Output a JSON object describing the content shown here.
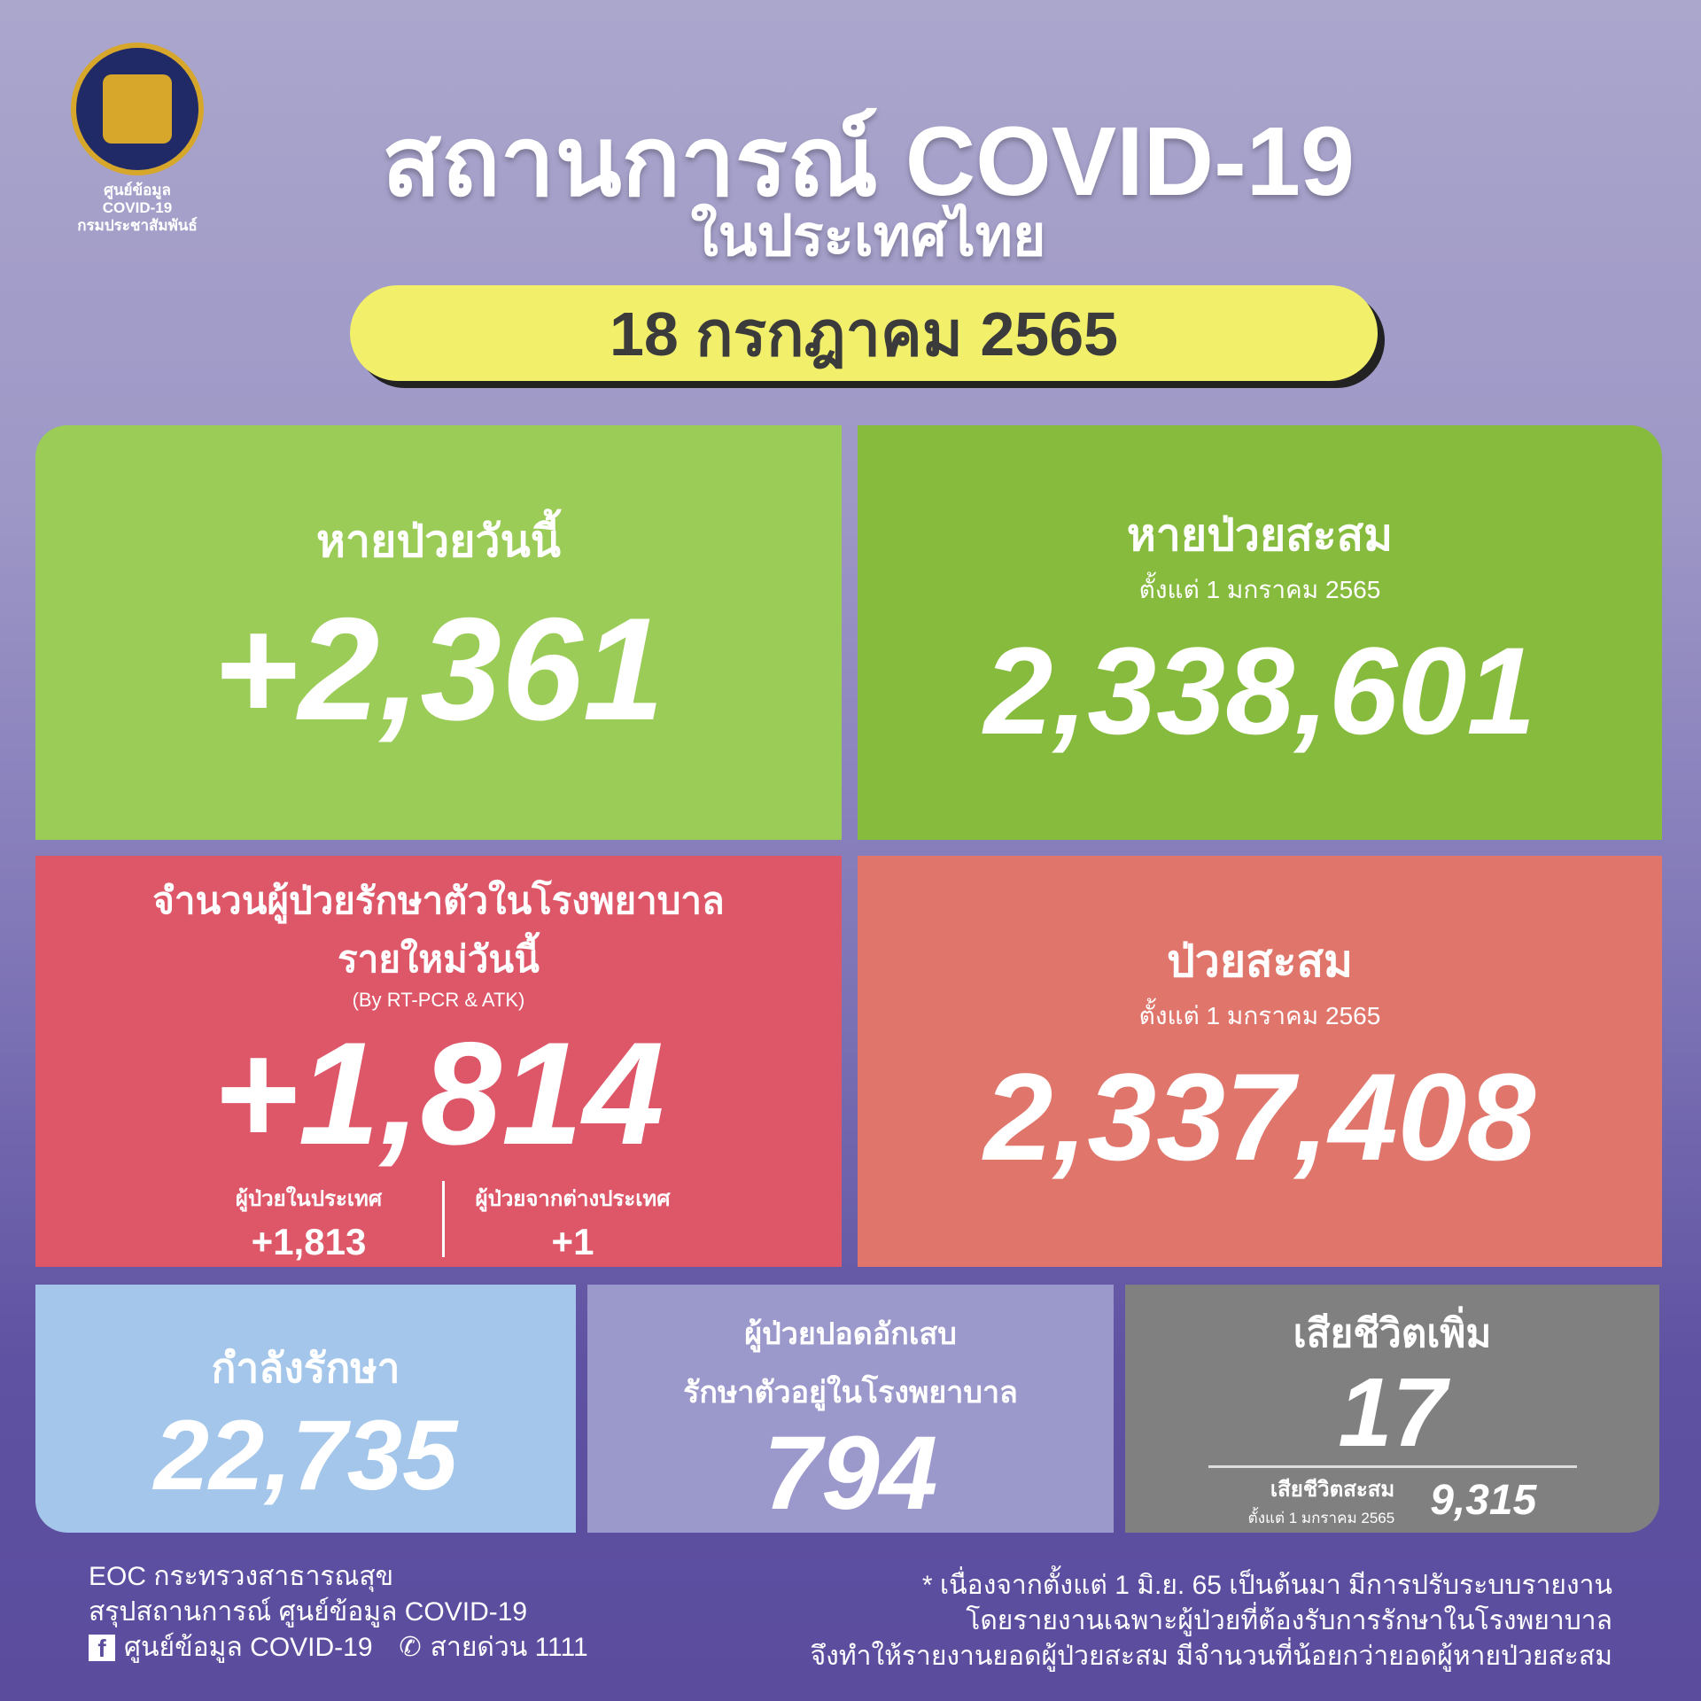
{
  "logo": {
    "line1": "ศูนย์ข้อมูล",
    "line2": "COVID-19",
    "line3": "กรมประชาสัมพันธ์"
  },
  "header": {
    "title": "สถานการณ์ COVID-19",
    "subtitle": "ในประเทศไทย",
    "date": "18 กรกฎาคม 2565"
  },
  "colors": {
    "recovered_today": "#9bcc58",
    "recovered_total": "#86bb3e",
    "new_cases": "#de5769",
    "total_cases": "#e0766b",
    "treating": "#a3c6ea",
    "pneumonia": "#9b98cc",
    "deaths": "#808080",
    "date_pill": "#f2ef6a"
  },
  "recovered_today": {
    "label": "หายป่วยวันนี้",
    "value": "+2,361"
  },
  "recovered_total": {
    "label": "หายป่วยสะสม",
    "since": "ตั้งแต่ 1 มกราคม 2565",
    "value": "2,338,601"
  },
  "new_cases": {
    "label1": "จำนวนผู้ป่วยรักษาตัวในโรงพยาบาล",
    "label2": "รายใหม่วันนี้",
    "note": "(By RT-PCR & ATK)",
    "value": "+1,814",
    "domestic_label": "ผู้ป่วยในประเทศ",
    "domestic_value": "+1,813",
    "imported_label": "ผู้ป่วยจากต่างประเทศ",
    "imported_value": "+1"
  },
  "total_cases": {
    "label": "ป่วยสะสม",
    "since": "ตั้งแต่ 1 มกราคม 2565",
    "value": "2,337,408"
  },
  "treating": {
    "label": "กำลังรักษา",
    "value": "22,735"
  },
  "pneumonia": {
    "label1": "ผู้ป่วยปอดอักเสบ",
    "label2": "รักษาตัวอยู่ในโรงพยาบาล",
    "value": "794"
  },
  "deaths": {
    "label": "เสียชีวิตเพิ่ม",
    "value": "17",
    "total_label": "เสียชีวิตสะสม",
    "since": "ตั้งแต่ 1 มกราคม 2565",
    "total_value": "9,315"
  },
  "footer": {
    "source1": "EOC กระทรวงสาธารณสุข",
    "source2": "สรุปสถานการณ์ ศูนย์ข้อมูล COVID-19",
    "facebook": "ศูนย์ข้อมูล COVID-19",
    "hotline": "สายด่วน 1111",
    "note1": "* เนื่องจากตั้งแต่ 1 มิ.ย. 65 เป็นต้นมา มีการปรับระบบรายงาน",
    "note2": "โดยรายงานเฉพาะผู้ป่วยที่ต้องรับการรักษาในโรงพยาบาล",
    "note3": "จึงทำให้รายงานยอดผู้ป่วยสะสม มีจำนวนที่น้อยกว่ายอดผู้หายป่วยสะสม"
  }
}
